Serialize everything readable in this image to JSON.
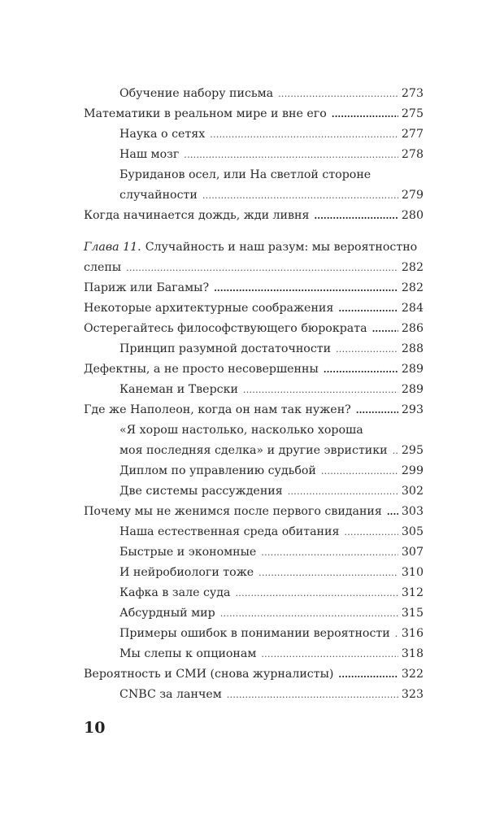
{
  "toc": {
    "entries": [
      {
        "level": 1,
        "title": "Обучение набору письма",
        "page": "273"
      },
      {
        "level": 0,
        "title": "Математики в реальном мире и вне его",
        "page": "275"
      },
      {
        "level": 1,
        "title": "Наука о сетях",
        "page": "277"
      },
      {
        "level": 1,
        "title": "Наш мозг",
        "page": "278"
      },
      {
        "level": 1,
        "first_line": "Буриданов осел, или На светлой стороне",
        "title": "случайности",
        "page": "279"
      },
      {
        "level": 0,
        "title": "Когда начинается дождь, жди ливня",
        "page": "280"
      },
      {
        "level": 0,
        "gap": true,
        "prefix": "Глава 11.",
        "first_line": "Случайность и наш разум: мы вероятностно",
        "title": "слепы",
        "page": "282",
        "plain_dots": true
      },
      {
        "level": 0,
        "title": "Париж или Багамы?",
        "page": "282"
      },
      {
        "level": 0,
        "title": "Некоторые архитектурные соображения",
        "page": "284"
      },
      {
        "level": 0,
        "title": "Остерегайтесь философствующего бюрократа",
        "page": "286"
      },
      {
        "level": 1,
        "title": "Принцип разумной достаточности",
        "page": "288"
      },
      {
        "level": 0,
        "title": "Дефектны, а не просто несовершенны",
        "page": "289"
      },
      {
        "level": 1,
        "title": "Канеман и Тверски",
        "page": "289"
      },
      {
        "level": 0,
        "title": "Где же Наполеон, когда он нам так нужен?",
        "page": "293"
      },
      {
        "level": 1,
        "first_line": "«Я хорош настолько, насколько хороша",
        "title": "моя последняя сделка» и другие эвристики",
        "page": "295"
      },
      {
        "level": 1,
        "title": "Диплом по управлению судьбой",
        "page": "299"
      },
      {
        "level": 1,
        "title": "Две системы рассуждения",
        "page": "302"
      },
      {
        "level": 0,
        "title": "Почему мы не женимся после первого свидания",
        "page": "303"
      },
      {
        "level": 1,
        "title": "Наша естественная среда обитания",
        "page": "305"
      },
      {
        "level": 1,
        "title": "Быстрые и экономные",
        "page": "307"
      },
      {
        "level": 1,
        "title": "И нейробиологи тоже",
        "page": "310"
      },
      {
        "level": 1,
        "title": "Кафка в зале суда",
        "page": "312"
      },
      {
        "level": 1,
        "title": "Абсурдный мир",
        "page": "315"
      },
      {
        "level": 1,
        "title": "Примеры ошибок в понимании вероятности",
        "page": "316"
      },
      {
        "level": 1,
        "title": "Мы слепы к опционам",
        "page": "318"
      },
      {
        "level": 0,
        "title": "Вероятность и СМИ (снова журналисты)",
        "page": "322"
      },
      {
        "level": 1,
        "title": "CNBC за ланчем",
        "page": "323"
      }
    ]
  },
  "folio": "10"
}
